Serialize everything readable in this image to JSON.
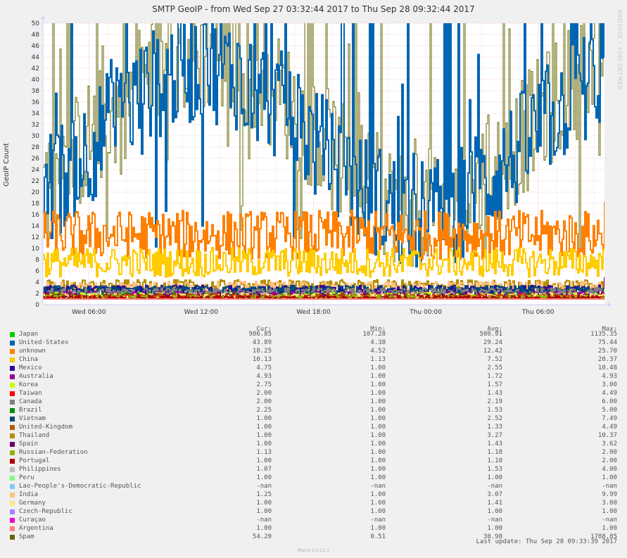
{
  "watermark": "RRDTOOL / TOBI OETIKER",
  "munin_version": "Munin 2.0.11.1",
  "last_update": "Last update: Thu Sep 28 09:33:39 2017",
  "legend_headers": {
    "cur": "Cur:",
    "min": "Min:",
    "avg": "Avg:",
    "max": "Max:"
  },
  "chart_data": {
    "type": "line",
    "title": "SMTP GeoIP - from Wed Sep 27 03:32:44 2017 to Thu Sep 28 09:32:44 2017",
    "ylabel": "GeoIP Count",
    "ylim": [
      0,
      50
    ],
    "yticks": [
      0,
      2,
      4,
      6,
      8,
      10,
      12,
      14,
      16,
      18,
      20,
      22,
      24,
      26,
      28,
      30,
      32,
      34,
      36,
      38,
      40,
      42,
      44,
      46,
      48,
      50
    ],
    "xlim": [
      "2017-09-27T03:32:44",
      "2017-09-28T09:32:44"
    ],
    "xticks": [
      {
        "label": "Wed 06:00",
        "t": "2017-09-27T06:00"
      },
      {
        "label": "Wed 12:00",
        "t": "2017-09-27T12:00"
      },
      {
        "label": "Wed 18:00",
        "t": "2017-09-27T18:00"
      },
      {
        "label": "Thu 00:00",
        "t": "2017-09-28T00:00"
      },
      {
        "label": "Thu 06:00",
        "t": "2017-09-28T06:00"
      }
    ],
    "grid": true,
    "legend_position": "bottom",
    "series": [
      {
        "name": "Japan",
        "color": "#00cc00",
        "cur": "986.85",
        "min": "107.28",
        "avg": "500.91",
        "max": "1135.35"
      },
      {
        "name": "United-States",
        "color": "#0066b3",
        "cur": "43.89",
        "min": "4.38",
        "avg": "29.24",
        "max": "75.44"
      },
      {
        "name": "unknown",
        "color": "#ff8000",
        "cur": "18.25",
        "min": "4.52",
        "avg": "12.42",
        "max": "25.70"
      },
      {
        "name": "China",
        "color": "#ffcc00",
        "cur": "10.13",
        "min": "1.13",
        "avg": "7.52",
        "max": "20.37"
      },
      {
        "name": "Mexico",
        "color": "#330099",
        "cur": "4.75",
        "min": "1.00",
        "avg": "2.55",
        "max": "10.48"
      },
      {
        "name": "Australia",
        "color": "#990099",
        "cur": "4.93",
        "min": "1.00",
        "avg": "1.72",
        "max": "4.93"
      },
      {
        "name": "Korea",
        "color": "#ccff00",
        "cur": "2.75",
        "min": "1.00",
        "avg": "1.57",
        "max": "3.00"
      },
      {
        "name": "Taiwan",
        "color": "#ff0000",
        "cur": "2.00",
        "min": "1.00",
        "avg": "1.43",
        "max": "4.49"
      },
      {
        "name": "Canada",
        "color": "#808080",
        "cur": "2.00",
        "min": "1.00",
        "avg": "2.19",
        "max": "6.00"
      },
      {
        "name": "Brazil",
        "color": "#008f00",
        "cur": "2.25",
        "min": "1.00",
        "avg": "1.53",
        "max": "5.00"
      },
      {
        "name": "Vietnam",
        "color": "#00487d",
        "cur": "1.00",
        "min": "1.00",
        "avg": "2.52",
        "max": "7.49"
      },
      {
        "name": "United-Kingdom",
        "color": "#b35a00",
        "cur": "1.00",
        "min": "1.00",
        "avg": "1.33",
        "max": "4.49"
      },
      {
        "name": "Thailand",
        "color": "#b38f00",
        "cur": "1.00",
        "min": "1.00",
        "avg": "3.27",
        "max": "10.37"
      },
      {
        "name": "Spain",
        "color": "#6b006b",
        "cur": "1.00",
        "min": "1.00",
        "avg": "1.43",
        "max": "3.62"
      },
      {
        "name": "Russian-Federation",
        "color": "#8fb300",
        "cur": "1.13",
        "min": "1.00",
        "avg": "1.18",
        "max": "2.00"
      },
      {
        "name": "Portugal",
        "color": "#b30000",
        "cur": "1.00",
        "min": "1.00",
        "avg": "1.10",
        "max": "2.00"
      },
      {
        "name": "Philippines",
        "color": "#bebebe",
        "cur": "1.07",
        "min": "1.00",
        "avg": "1.53",
        "max": "4.00"
      },
      {
        "name": "Peru",
        "color": "#80ff80",
        "cur": "1.00",
        "min": "1.00",
        "avg": "1.00",
        "max": "1.00"
      },
      {
        "name": "Lao-People's-Democratic-Republic",
        "color": "#80c9ff",
        "cur": "-nan",
        "min": "-nan",
        "avg": "-nan",
        "max": "-nan"
      },
      {
        "name": "India",
        "color": "#ffc080",
        "cur": "1.25",
        "min": "1.00",
        "avg": "3.07",
        "max": "9.99"
      },
      {
        "name": "Germany",
        "color": "#ffe680",
        "cur": "1.00",
        "min": "1.00",
        "avg": "1.41",
        "max": "3.00"
      },
      {
        "name": "Czech-Republic",
        "color": "#aa80ff",
        "cur": "1.00",
        "min": "1.00",
        "avg": "1.00",
        "max": "1.00"
      },
      {
        "name": "Curaçao",
        "color": "#ee00cc",
        "cur": "-nan",
        "min": "-nan",
        "avg": "-nan",
        "max": "-nan"
      },
      {
        "name": "Argentina",
        "color": "#ff8080",
        "cur": "1.00",
        "min": "1.00",
        "avg": "1.00",
        "max": "1.00"
      },
      {
        "name": "Spam",
        "color": "#666600",
        "cur": "54.20",
        "min": "0.51",
        "avg": "30.98",
        "max": "1788.85"
      }
    ]
  }
}
